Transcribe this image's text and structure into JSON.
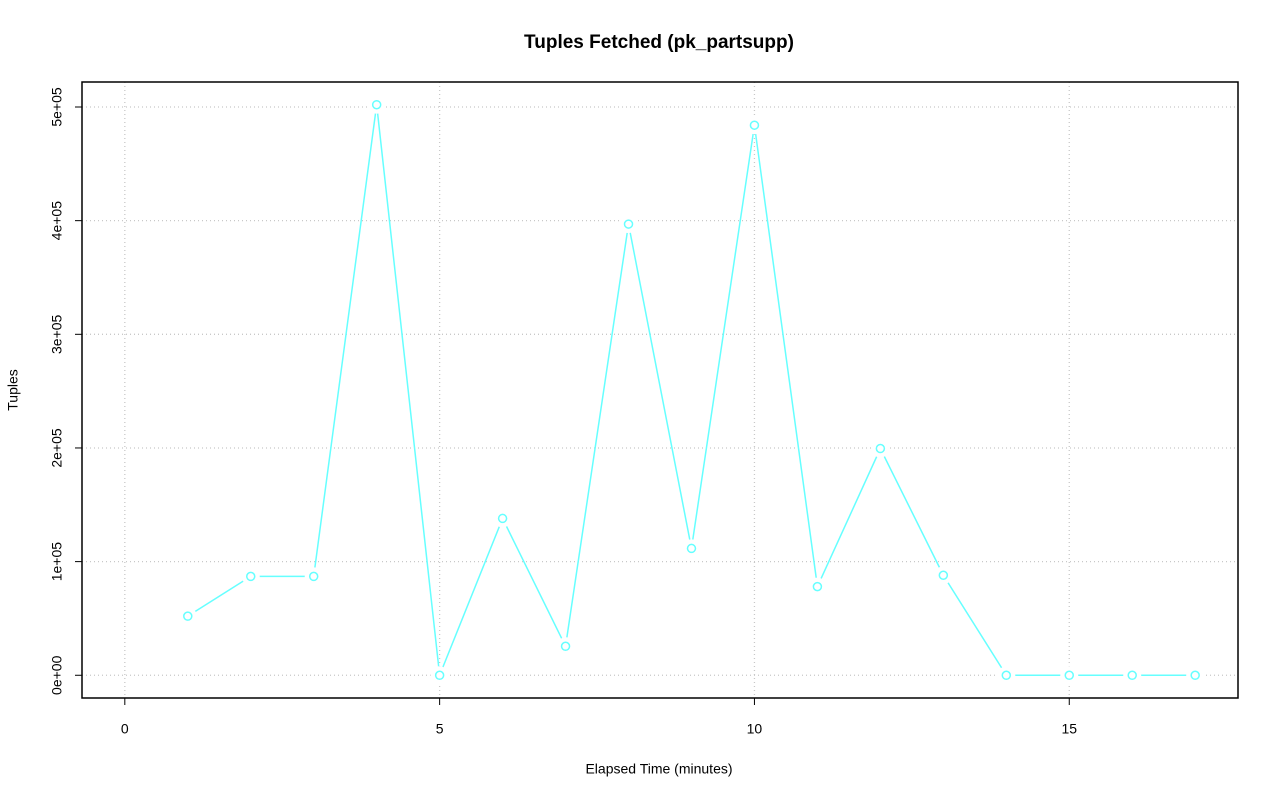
{
  "chart_data": {
    "type": "line",
    "title": "Tuples Fetched (pk_partsupp)",
    "x_label": "Elapsed Time (minutes)",
    "y_label": "Tuples",
    "series": [
      {
        "name": "pk_partsupp",
        "color": "#66ffff",
        "x": [
          1,
          2,
          3,
          4,
          5,
          6,
          7,
          8,
          9,
          10,
          11,
          12,
          13,
          14,
          15,
          16,
          17
        ],
        "values": [
          52000,
          87000,
          87000,
          502000,
          0,
          138000,
          25500,
          397000,
          111600,
          484000,
          78000,
          199500,
          88000,
          0,
          0,
          0,
          0
        ]
      }
    ],
    "xlim": [
      -0.68,
      17.68
    ],
    "xticks": [
      0,
      5,
      10,
      15
    ],
    "ylim": [
      -20000,
      522000
    ],
    "yticks": [
      {
        "value": 0,
        "label": "0e+00"
      },
      {
        "value": 100000,
        "label": "1e+05"
      },
      {
        "value": 200000,
        "label": "2e+05"
      },
      {
        "value": 300000,
        "label": "3e+05"
      },
      {
        "value": 400000,
        "label": "4e+05"
      },
      {
        "value": 500000,
        "label": "5e+05"
      }
    ],
    "grid": true
  }
}
